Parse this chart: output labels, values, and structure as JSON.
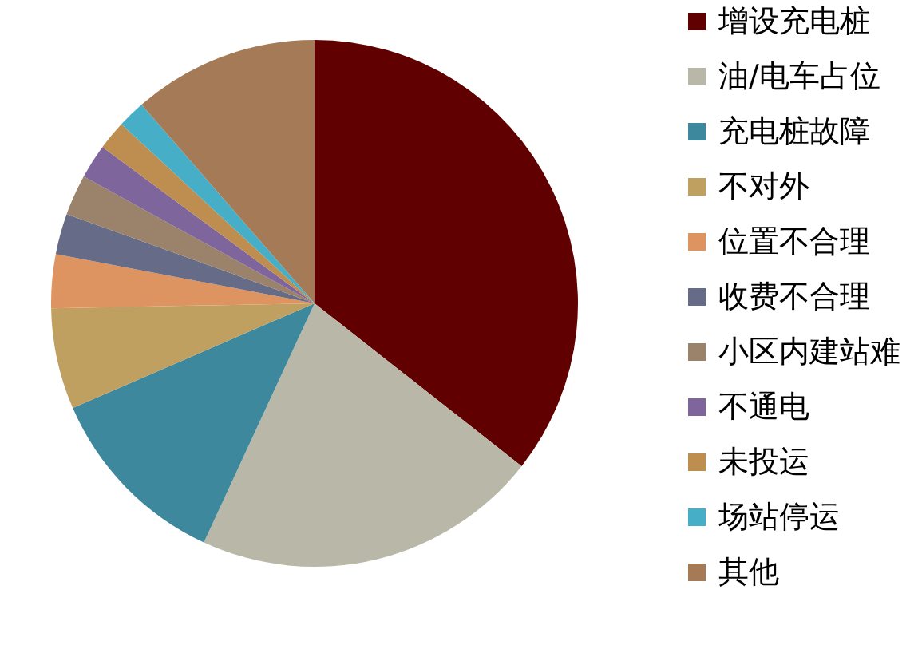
{
  "chart_data": {
    "type": "pie",
    "categories": [
      "增设充电桩",
      "油/电车占位",
      "充电桩故障",
      "不对外",
      "位置不合理",
      "收费不合理",
      "小区内建站难",
      "不通电",
      "未投运",
      "场站停运",
      "其他"
    ],
    "values": [
      35.6,
      21.3,
      11.6,
      6.2,
      3.3,
      2.5,
      2.5,
      2.1,
      1.8,
      1.7,
      11.4
    ],
    "colors": [
      "#600000",
      "#b9b8a8",
      "#3d889c",
      "#c0a060",
      "#dd9460",
      "#666b87",
      "#9b826a",
      "#7e659b",
      "#be8e50",
      "#47aec8",
      "#a47b56"
    ],
    "legend": "right"
  }
}
